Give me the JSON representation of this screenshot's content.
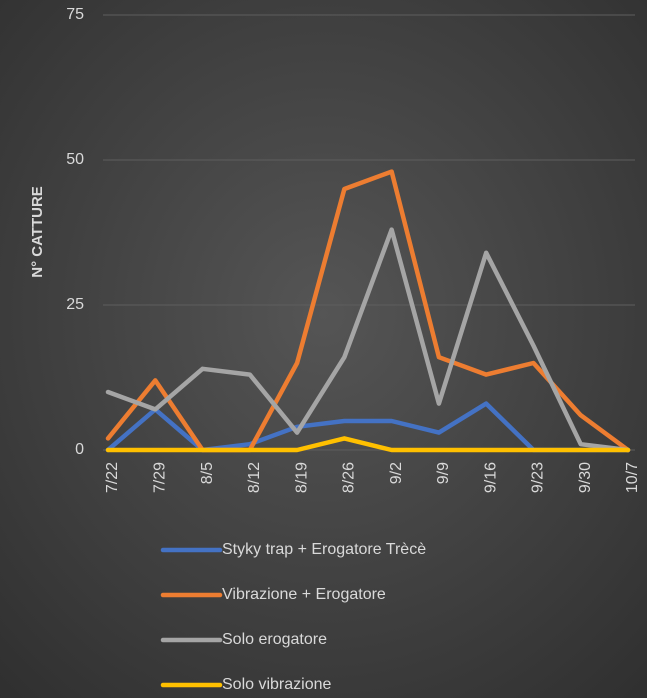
{
  "chart_data": {
    "type": "line",
    "y_label": "N° CATTURE",
    "categories": [
      "7/22",
      "7/29",
      "8/5",
      "8/12",
      "8/19",
      "8/26",
      "9/2",
      "9/9",
      "9/16",
      "9/23",
      "9/30",
      "10/7"
    ],
    "series": [
      {
        "name": "Styky trap + Erogatore Trècè",
        "color": "#4472c4",
        "values": [
          0,
          7,
          0,
          1,
          4,
          5,
          5,
          3,
          8,
          0,
          0,
          0
        ]
      },
      {
        "name": "Vibrazione + Erogatore",
        "color": "#ed7d31",
        "values": [
          2,
          12,
          0,
          0,
          15,
          45,
          48,
          16,
          13,
          15,
          6,
          0
        ]
      },
      {
        "name": "Solo erogatore",
        "color": "#a5a5a5",
        "values": [
          10,
          7,
          14,
          13,
          3,
          16,
          38,
          8,
          34,
          18,
          1,
          0
        ]
      },
      {
        "name": "Solo vibrazione",
        "color": "#ffc000",
        "values": [
          0,
          0,
          0,
          0,
          0,
          2,
          0,
          0,
          0,
          0,
          0,
          0
        ]
      }
    ],
    "ylim": [
      0,
      75
    ],
    "yticks": [
      0,
      25,
      50,
      75
    ],
    "grid": true,
    "legend": "bottom"
  }
}
